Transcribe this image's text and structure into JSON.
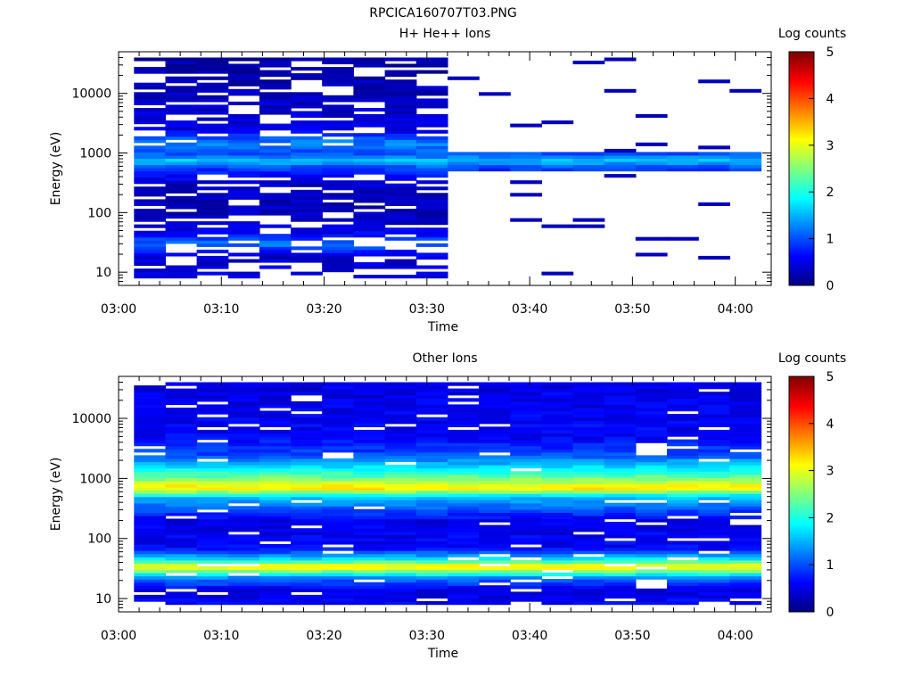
{
  "figure": {
    "title": "RPCICA160707T03.PNG"
  },
  "chart_data": [
    {
      "type": "heatmap",
      "title": "H+ He++ Ions",
      "xlabel": "Time",
      "ylabel": "Energy (eV)",
      "xticks": [
        "03:00",
        "03:10",
        "03:20",
        "03:30",
        "03:40",
        "03:50",
        "04:00"
      ],
      "yscale": "log",
      "ylim": [
        6,
        50000
      ],
      "yticks": [
        {
          "value": 10,
          "label": "10"
        },
        {
          "value": 100,
          "label": "100"
        },
        {
          "value": 1000,
          "label": "1000"
        },
        {
          "value": 10000,
          "label": "10000"
        }
      ],
      "colorbar": {
        "label": "Log counts",
        "min": 0,
        "max": 5,
        "ticks": [
          "0",
          "1",
          "2",
          "3",
          "4",
          "5"
        ]
      },
      "colormap": [
        "#00007f",
        "#0000ff",
        "#007fff",
        "#00ffff",
        "#7fff7f",
        "#ffff00",
        "#ff7f00",
        "#ff0000",
        "#7f0000"
      ],
      "time_columns": [
        "03:02",
        "03:06",
        "03:10",
        "03:14",
        "03:18",
        "03:22",
        "03:26",
        "03:30",
        "03:34",
        "03:38",
        "03:42",
        "03:46",
        "03:50",
        "03:54",
        "03:58",
        "04:02"
      ],
      "profile": [
        {
          "energy_eV": 10,
          "log_counts": 0.5
        },
        {
          "energy_eV": 18,
          "log_counts": 0.35
        },
        {
          "energy_eV": 30,
          "log_counts": 1.2
        },
        {
          "energy_eV": 45,
          "log_counts": 0.6
        },
        {
          "energy_eV": 80,
          "log_counts": 0.3
        },
        {
          "energy_eV": 150,
          "log_counts": 0.3
        },
        {
          "energy_eV": 300,
          "log_counts": 0.35
        },
        {
          "energy_eV": 550,
          "log_counts": 0.9
        },
        {
          "energy_eV": 750,
          "log_counts": 1.6
        },
        {
          "energy_eV": 1000,
          "log_counts": 1.0
        },
        {
          "energy_eV": 1500,
          "log_counts": 1.3
        },
        {
          "energy_eV": 2500,
          "log_counts": 0.5
        },
        {
          "energy_eV": 10000,
          "log_counts": 0.3
        },
        {
          "energy_eV": 28000,
          "log_counts": 0.2
        }
      ],
      "notes_visible": "dense spectrum until about 03:33, afterwards only a band near 500-1000 eV"
    },
    {
      "type": "heatmap",
      "title": "Other Ions",
      "xlabel": "Time",
      "ylabel": "Energy (eV)",
      "xticks": [
        "03:00",
        "03:10",
        "03:20",
        "03:30",
        "03:40",
        "03:50",
        "04:00"
      ],
      "yscale": "log",
      "ylim": [
        6,
        50000
      ],
      "yticks": [
        {
          "value": 10,
          "label": "10"
        },
        {
          "value": 100,
          "label": "100"
        },
        {
          "value": 1000,
          "label": "1000"
        },
        {
          "value": 10000,
          "label": "10000"
        }
      ],
      "colorbar": {
        "label": "Log counts",
        "min": 0,
        "max": 5,
        "ticks": [
          "0",
          "1",
          "2",
          "3",
          "4",
          "5"
        ]
      },
      "colormap": [
        "#00007f",
        "#0000ff",
        "#007fff",
        "#00ffff",
        "#7fff7f",
        "#ffff00",
        "#ff7f00",
        "#ff0000",
        "#7f0000"
      ],
      "time_columns": [
        "03:02",
        "03:06",
        "03:10",
        "03:14",
        "03:18",
        "03:22",
        "03:26",
        "03:30",
        "03:34",
        "03:38",
        "03:42",
        "03:46",
        "03:50",
        "03:54",
        "03:58",
        "04:02"
      ],
      "profile": [
        {
          "energy_eV": 8,
          "log_counts": 0.6
        },
        {
          "energy_eV": 14,
          "log_counts": 0.5
        },
        {
          "energy_eV": 22,
          "log_counts": 1.2
        },
        {
          "energy_eV": 30,
          "log_counts": 2.7
        },
        {
          "energy_eV": 35,
          "log_counts": 3.3
        },
        {
          "energy_eV": 45,
          "log_counts": 1.8
        },
        {
          "energy_eV": 70,
          "log_counts": 0.6
        },
        {
          "energy_eV": 200,
          "log_counts": 0.5
        },
        {
          "energy_eV": 500,
          "log_counts": 1.6
        },
        {
          "energy_eV": 700,
          "log_counts": 3.3
        },
        {
          "energy_eV": 1000,
          "log_counts": 2.5
        },
        {
          "energy_eV": 1500,
          "log_counts": 1.8
        },
        {
          "energy_eV": 2500,
          "log_counts": 1.0
        },
        {
          "energy_eV": 5000,
          "log_counts": 0.6
        },
        {
          "energy_eV": 30000,
          "log_counts": 0.5
        }
      ]
    }
  ]
}
